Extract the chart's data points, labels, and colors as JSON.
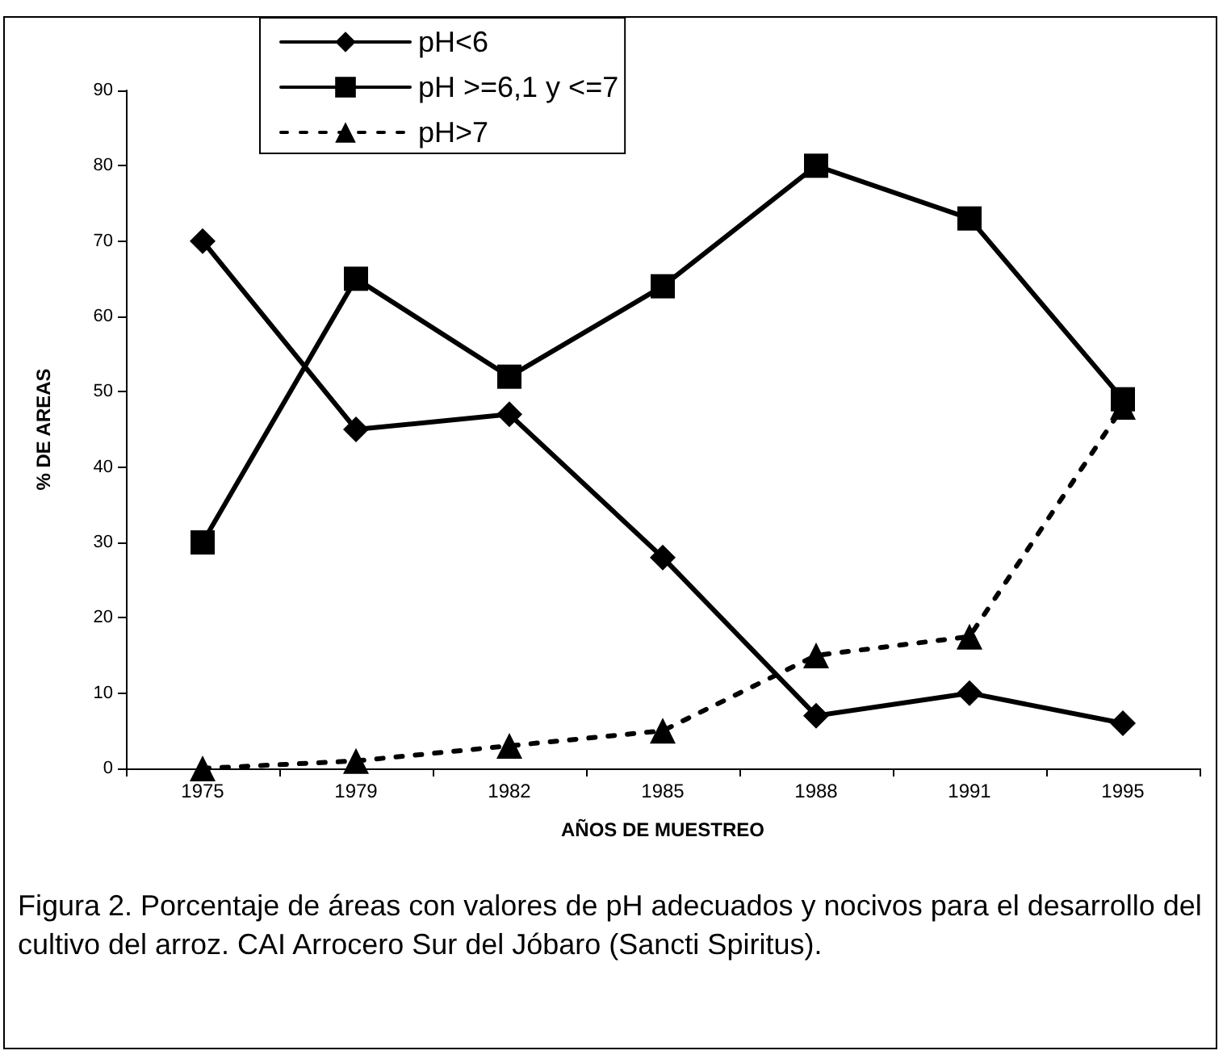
{
  "chart_data": {
    "type": "line",
    "xlabel": "AÑOS DE MUESTREO",
    "ylabel": "% DE AREAS",
    "categories": [
      "1975",
      "1979",
      "1982",
      "1985",
      "1988",
      "1991",
      "1995"
    ],
    "series": [
      {
        "name": "pH<6",
        "color": "#000000",
        "marker": "diamond",
        "line_style": "solid",
        "values": [
          70,
          45,
          47,
          28,
          7,
          10,
          6
        ]
      },
      {
        "name": "pH >=6,1 y <=7",
        "color": "#000000",
        "marker": "square",
        "line_style": "solid",
        "values": [
          30,
          65,
          52,
          64,
          80,
          73,
          49
        ]
      },
      {
        "name": "pH>7",
        "color": "#000000",
        "marker": "triangle",
        "line_style": "dashed",
        "values": [
          0,
          1,
          3,
          5,
          15,
          17.5,
          48
        ]
      }
    ],
    "ylim": [
      0,
      90
    ],
    "yticks": [
      0,
      10,
      20,
      30,
      40,
      50,
      60,
      70,
      80,
      90
    ],
    "grid": false,
    "legend": "top",
    "annotations": [
      "Figura 2. Porcentaje de áreas con valores de pH adecuados y nocivos para el desarrollo del cultivo del arroz. CAI Arrocero Sur del Jóbaro (Sancti Spiritus)."
    ]
  }
}
